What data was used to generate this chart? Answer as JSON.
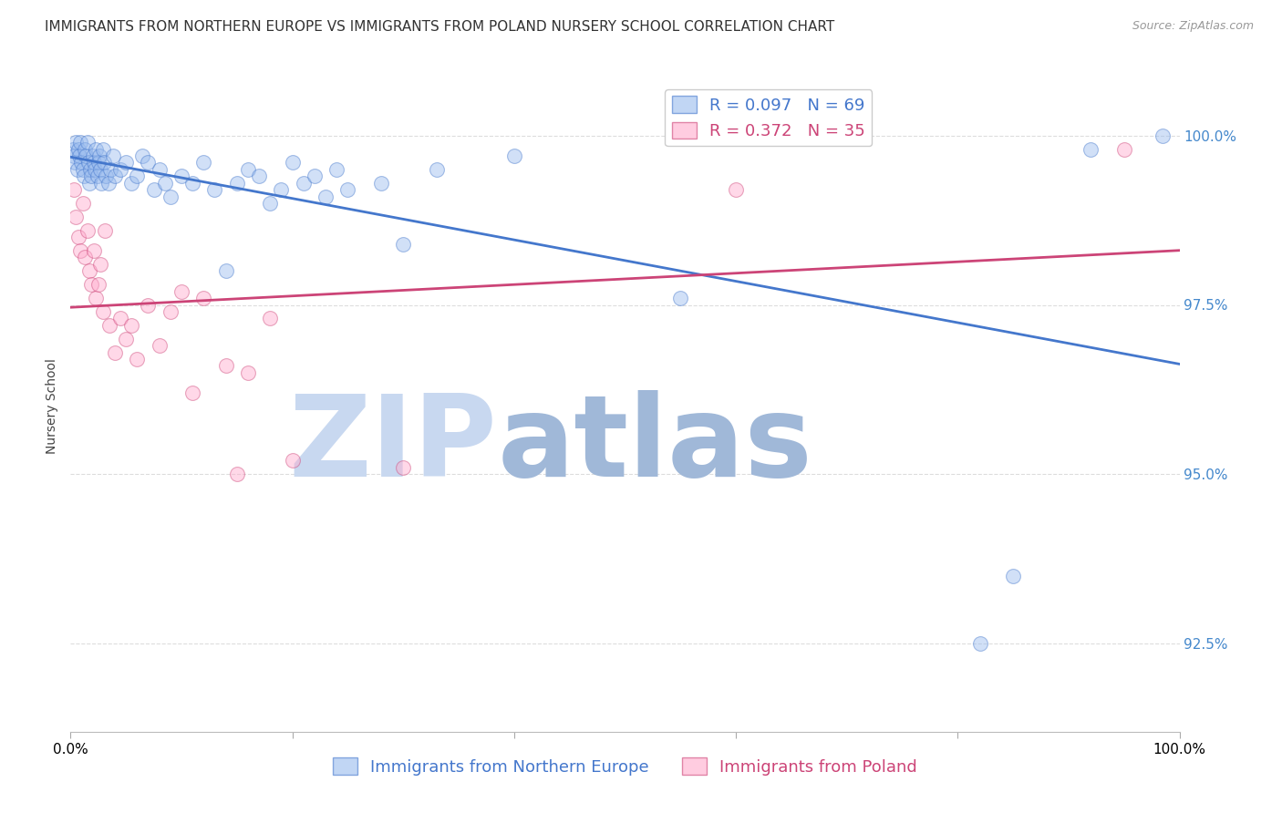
{
  "title": "IMMIGRANTS FROM NORTHERN EUROPE VS IMMIGRANTS FROM POLAND NURSERY SCHOOL CORRELATION CHART",
  "source": "Source: ZipAtlas.com",
  "ylabel": "Nursery School",
  "xlim": [
    0.0,
    100.0
  ],
  "ylim": [
    91.2,
    100.8
  ],
  "yticks": [
    92.5,
    95.0,
    97.5,
    100.0
  ],
  "ytick_labels": [
    "92.5%",
    "95.0%",
    "97.5%",
    "100.0%"
  ],
  "blue_color": "#99BBEE",
  "pink_color": "#FFAACC",
  "blue_line_color": "#4477CC",
  "pink_line_color": "#CC4477",
  "R_blue": 0.097,
  "N_blue": 69,
  "R_pink": 0.372,
  "N_pink": 35,
  "legend_label_blue": "Immigrants from Northern Europe",
  "legend_label_pink": "Immigrants from Poland",
  "blue_x": [
    0.2,
    0.3,
    0.4,
    0.5,
    0.6,
    0.7,
    0.8,
    0.9,
    1.0,
    1.1,
    1.2,
    1.3,
    1.4,
    1.5,
    1.6,
    1.7,
    1.8,
    1.9,
    2.0,
    2.1,
    2.2,
    2.3,
    2.4,
    2.5,
    2.6,
    2.7,
    2.8,
    2.9,
    3.0,
    3.2,
    3.4,
    3.6,
    3.8,
    4.0,
    4.5,
    5.0,
    5.5,
    6.0,
    6.5,
    7.0,
    7.5,
    8.0,
    8.5,
    9.0,
    10.0,
    11.0,
    12.0,
    13.0,
    14.0,
    15.0,
    16.0,
    17.0,
    18.0,
    19.0,
    20.0,
    21.0,
    22.0,
    23.0,
    24.0,
    25.0,
    28.0,
    30.0,
    33.0,
    40.0,
    55.0,
    82.0,
    85.0,
    92.0,
    98.5
  ],
  "blue_y": [
    99.8,
    99.7,
    99.6,
    99.9,
    99.5,
    99.8,
    99.7,
    99.9,
    99.6,
    99.5,
    99.4,
    99.8,
    99.7,
    99.9,
    99.6,
    99.3,
    99.5,
    99.4,
    99.7,
    99.6,
    99.5,
    99.8,
    99.4,
    99.6,
    99.7,
    99.5,
    99.3,
    99.8,
    99.6,
    99.4,
    99.3,
    99.5,
    99.7,
    99.4,
    99.5,
    99.6,
    99.3,
    99.4,
    99.7,
    99.6,
    99.2,
    99.5,
    99.3,
    99.1,
    99.4,
    99.3,
    99.6,
    99.2,
    98.0,
    99.3,
    99.5,
    99.4,
    99.0,
    99.2,
    99.6,
    99.3,
    99.4,
    99.1,
    99.5,
    99.2,
    99.3,
    98.4,
    99.5,
    99.7,
    97.6,
    92.5,
    93.5,
    99.8,
    100.0
  ],
  "pink_x": [
    0.3,
    0.5,
    0.7,
    0.9,
    1.1,
    1.3,
    1.5,
    1.7,
    1.9,
    2.1,
    2.3,
    2.5,
    2.7,
    2.9,
    3.1,
    3.5,
    4.0,
    4.5,
    5.0,
    5.5,
    6.0,
    7.0,
    8.0,
    9.0,
    10.0,
    11.0,
    12.0,
    14.0,
    15.0,
    16.0,
    18.0,
    20.0,
    30.0,
    60.0,
    95.0
  ],
  "pink_y": [
    99.2,
    98.8,
    98.5,
    98.3,
    99.0,
    98.2,
    98.6,
    98.0,
    97.8,
    98.3,
    97.6,
    97.8,
    98.1,
    97.4,
    98.6,
    97.2,
    96.8,
    97.3,
    97.0,
    97.2,
    96.7,
    97.5,
    96.9,
    97.4,
    97.7,
    96.2,
    97.6,
    96.6,
    95.0,
    96.5,
    97.3,
    95.2,
    95.1,
    99.2,
    99.8
  ],
  "watermark_zip": "ZIP",
  "watermark_atlas": "atlas",
  "watermark_color_zip": "#C8D8F0",
  "watermark_color_atlas": "#A0B8D8",
  "background_color": "#FFFFFF",
  "grid_color": "#DDDDDD",
  "title_fontsize": 11,
  "axis_label_fontsize": 10,
  "tick_fontsize": 11,
  "legend_fontsize": 13,
  "right_tick_color": "#4488CC",
  "scatter_size": 130,
  "scatter_alpha": 0.45
}
